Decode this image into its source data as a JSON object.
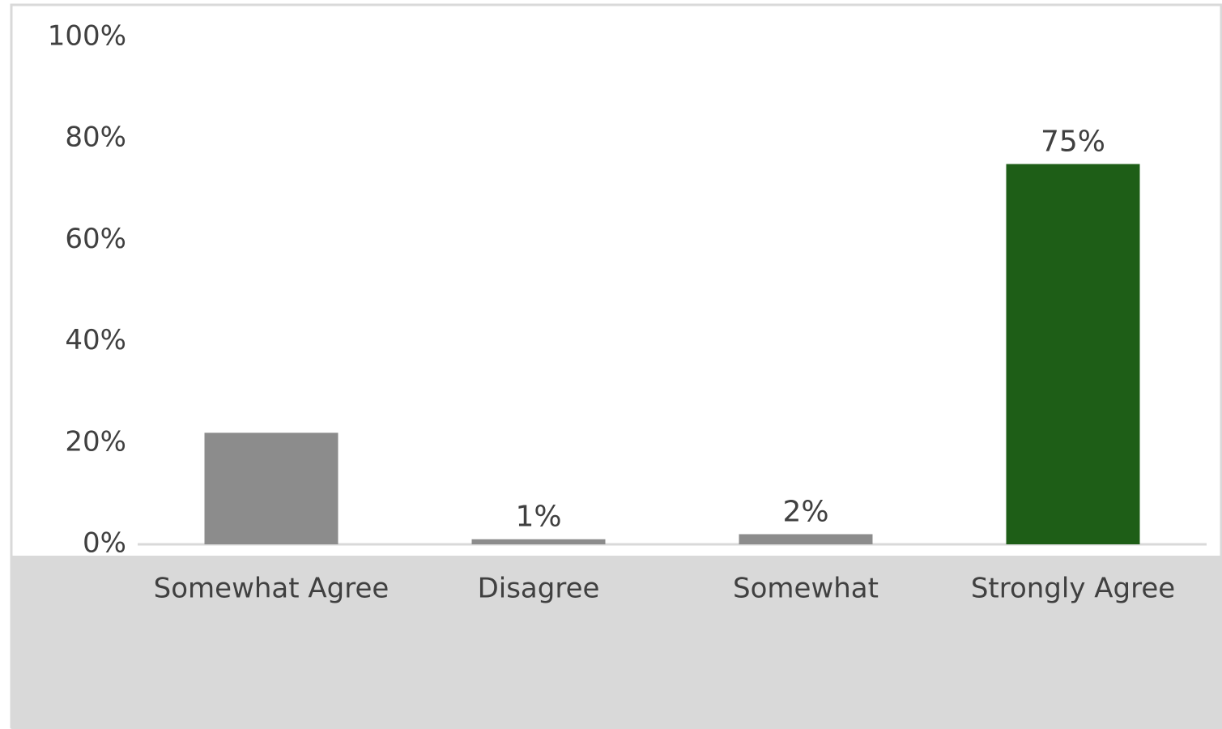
{
  "chart_data": {
    "type": "bar",
    "categories": [
      "Somewhat Agree",
      "Disagree",
      "Somewhat",
      "Strongly Agree"
    ],
    "values": [
      22,
      1,
      2,
      75
    ],
    "value_labels": [
      null,
      "1%",
      "2%",
      "75%"
    ],
    "colors": [
      "#8c8c8c",
      "#8c8c8c",
      "#8c8c8c",
      "#1e5e17"
    ],
    "ylim": [
      0,
      100
    ],
    "yticks": [
      {
        "value": 0,
        "label": "0%"
      },
      {
        "value": 20,
        "label": "20%"
      },
      {
        "value": 40,
        "label": "40%"
      },
      {
        "value": 60,
        "label": "60%"
      },
      {
        "value": 80,
        "label": "80%"
      },
      {
        "value": 100,
        "label": "100%"
      }
    ],
    "grid": false
  }
}
